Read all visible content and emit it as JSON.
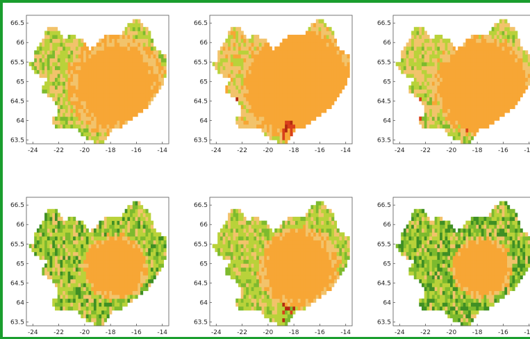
{
  "figure": {
    "panels_grid": {
      "rows": 2,
      "cols": 3
    },
    "x_ticks": [
      "-24",
      "-22",
      "-20",
      "-18",
      "-16",
      "-14"
    ],
    "y_ticks": [
      "66.5",
      "66",
      "65.5",
      "65",
      "64.5",
      "64",
      "63.5"
    ],
    "x_range": [
      -24.5,
      -13.5
    ],
    "y_range": [
      63.4,
      66.7
    ]
  },
  "panels": [
    {
      "row": 0,
      "col": 0,
      "scheme": "orange-interior-green-edge"
    },
    {
      "row": 0,
      "col": 1,
      "scheme": "orange-interior-red-southwest"
    },
    {
      "row": 0,
      "col": 2,
      "scheme": "orange-interior-sparse-red"
    },
    {
      "row": 1,
      "col": 0,
      "scheme": "green-with-orange-center"
    },
    {
      "row": 1,
      "col": 1,
      "scheme": "green-orange-red-southwest"
    },
    {
      "row": 1,
      "col": 2,
      "scheme": "dark-green-with-orange-center"
    }
  ],
  "colors": {
    "border": "#1a9e2e",
    "orange": "#f7a635",
    "light_orange": "#f2c36b",
    "yellow_green": "#b9d23a",
    "green": "#7dba2e",
    "dark_green": "#3f8f24",
    "red": "#d8401a",
    "dark_red": "#b32a10"
  }
}
